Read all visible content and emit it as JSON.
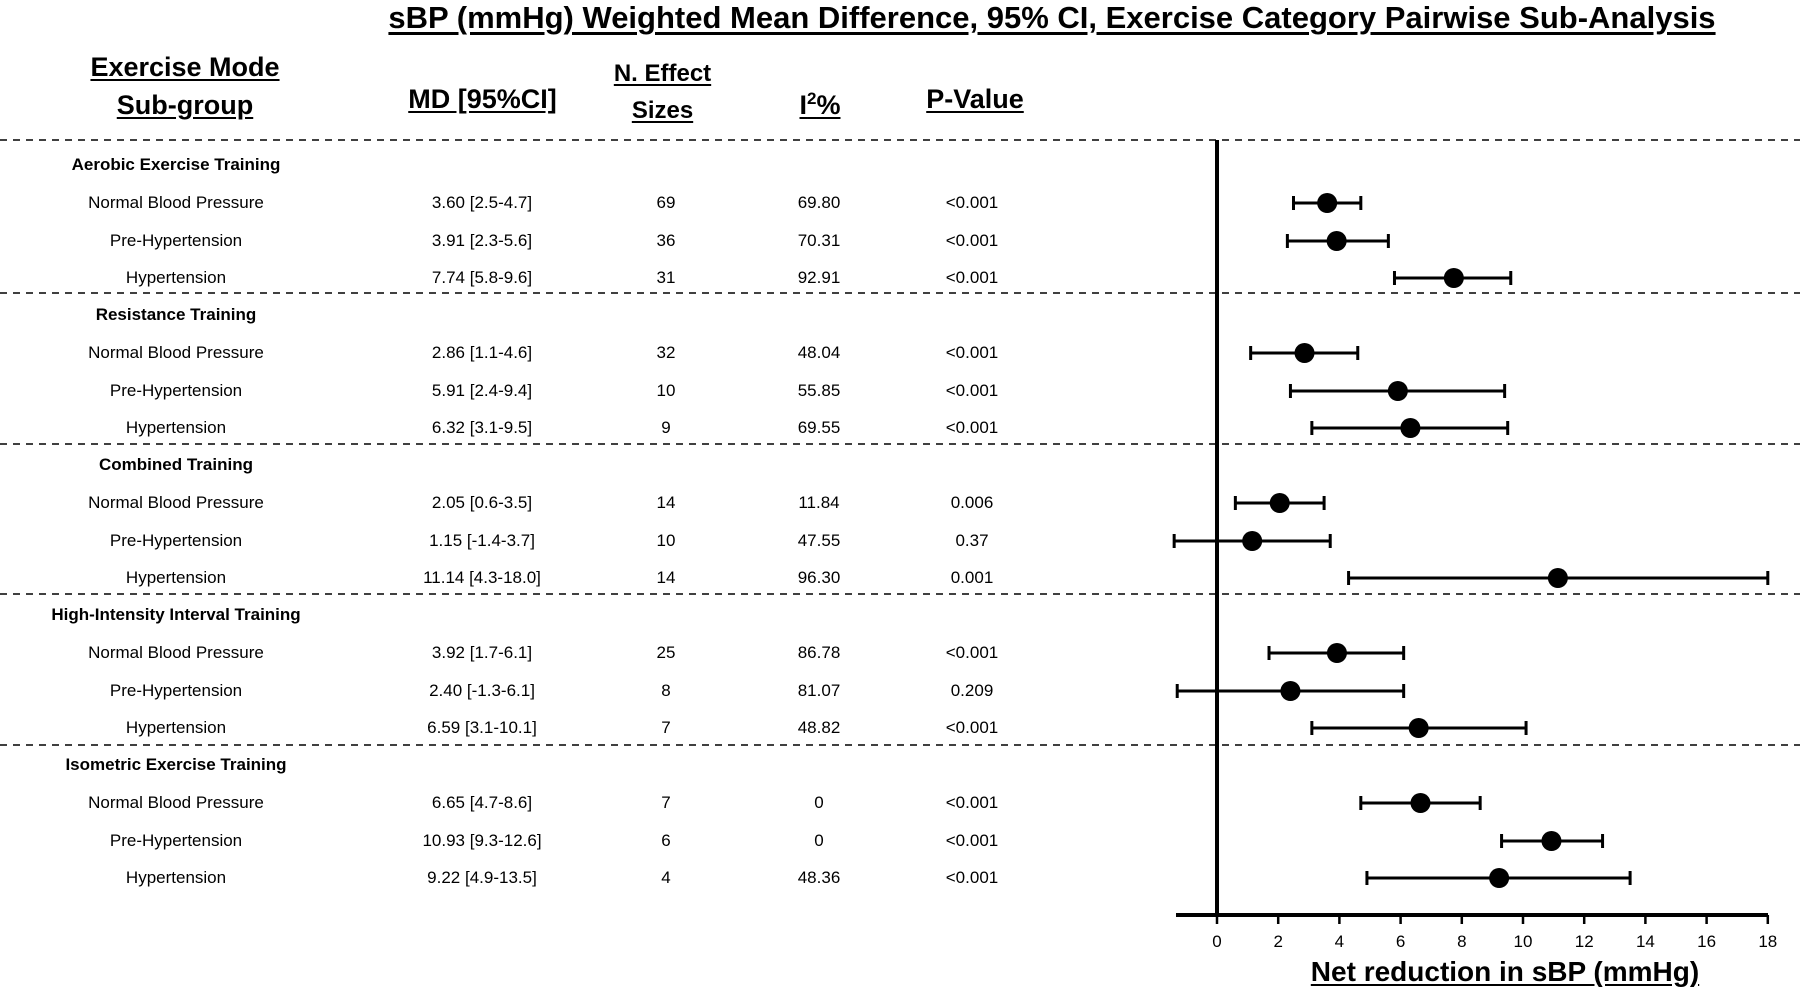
{
  "title": "sBP (mmHg) Weighted Mean Difference, 95% CI, Exercise Category Pairwise Sub-Analysis",
  "headers": {
    "mode_line1": "Exercise Mode",
    "mode_line2": "Sub-group",
    "md": "MD [95%CI]",
    "n_line1": "N. Effect",
    "n_line2": "Sizes",
    "i2_base": "I",
    "i2_sup": "2",
    "i2_pct": "%",
    "p": "P-Value"
  },
  "chart_data": {
    "type": "forest",
    "xlabel": "Net reduction in sBP (mmHg)",
    "xlim": [
      0,
      18
    ],
    "xticks": [
      0,
      2,
      4,
      6,
      8,
      10,
      12,
      14,
      16,
      18
    ],
    "groups": [
      {
        "name": "Aerobic Exercise Training",
        "rows": [
          {
            "label": "Normal Blood Pressure",
            "md_text": "3.60 [2.5-4.7]",
            "n": "69",
            "i2": "69.80",
            "p": "<0.001",
            "mean": 3.6,
            "lo": 2.5,
            "hi": 4.7
          },
          {
            "label": "Pre-Hypertension",
            "md_text": "3.91 [2.3-5.6]",
            "n": "36",
            "i2": "70.31",
            "p": "<0.001",
            "mean": 3.91,
            "lo": 2.3,
            "hi": 5.6
          },
          {
            "label": "Hypertension",
            "md_text": "7.74 [5.8-9.6]",
            "n": "31",
            "i2": "92.91",
            "p": "<0.001",
            "mean": 7.74,
            "lo": 5.8,
            "hi": 9.6
          }
        ]
      },
      {
        "name": "Resistance Training",
        "rows": [
          {
            "label": "Normal Blood Pressure",
            "md_text": "2.86 [1.1-4.6]",
            "n": "32",
            "i2": "48.04",
            "p": "<0.001",
            "mean": 2.86,
            "lo": 1.1,
            "hi": 4.6
          },
          {
            "label": "Pre-Hypertension",
            "md_text": "5.91 [2.4-9.4]",
            "n": "10",
            "i2": "55.85",
            "p": "<0.001",
            "mean": 5.91,
            "lo": 2.4,
            "hi": 9.4
          },
          {
            "label": "Hypertension",
            "md_text": "6.32 [3.1-9.5]",
            "n": "9",
            "i2": "69.55",
            "p": "<0.001",
            "mean": 6.32,
            "lo": 3.1,
            "hi": 9.5
          }
        ]
      },
      {
        "name": "Combined Training",
        "rows": [
          {
            "label": "Normal Blood Pressure",
            "md_text": "2.05 [0.6-3.5]",
            "n": "14",
            "i2": "11.84",
            "p": "0.006",
            "mean": 2.05,
            "lo": 0.6,
            "hi": 3.5
          },
          {
            "label": "Pre-Hypertension",
            "md_text": "1.15 [-1.4-3.7]",
            "n": "10",
            "i2": "47.55",
            "p": "0.37",
            "mean": 1.15,
            "lo": -1.4,
            "hi": 3.7
          },
          {
            "label": "Hypertension",
            "md_text": "11.14 [4.3-18.0]",
            "n": "14",
            "i2": "96.30",
            "p": "0.001",
            "mean": 11.14,
            "lo": 4.3,
            "hi": 18.0
          }
        ]
      },
      {
        "name": "High-Intensity Interval Training",
        "rows": [
          {
            "label": "Normal Blood Pressure",
            "md_text": "3.92 [1.7-6.1]",
            "n": "25",
            "i2": "86.78",
            "p": "<0.001",
            "mean": 3.92,
            "lo": 1.7,
            "hi": 6.1
          },
          {
            "label": "Pre-Hypertension",
            "md_text": "2.40 [-1.3-6.1]",
            "n": "8",
            "i2": "81.07",
            "p": "0.209",
            "mean": 2.4,
            "lo": -1.3,
            "hi": 6.1
          },
          {
            "label": "Hypertension",
            "md_text": "6.59 [3.1-10.1]",
            "n": "7",
            "i2": "48.82",
            "p": "<0.001",
            "mean": 6.59,
            "lo": 3.1,
            "hi": 10.1
          }
        ]
      },
      {
        "name": "Isometric Exercise Training",
        "rows": [
          {
            "label": "Normal Blood Pressure",
            "md_text": "6.65 [4.7-8.6]",
            "n": "7",
            "i2": "0",
            "p": "<0.001",
            "mean": 6.65,
            "lo": 4.7,
            "hi": 8.6
          },
          {
            "label": "Pre-Hypertension",
            "md_text": "10.93 [9.3-12.6]",
            "n": "6",
            "i2": "0",
            "p": "<0.001",
            "mean": 10.93,
            "lo": 9.3,
            "hi": 12.6
          },
          {
            "label": "Hypertension",
            "md_text": "9.22 [4.9-13.5]",
            "n": "4",
            "i2": "48.36",
            "p": "<0.001",
            "mean": 9.22,
            "lo": 4.9,
            "hi": 13.5
          }
        ]
      }
    ]
  }
}
